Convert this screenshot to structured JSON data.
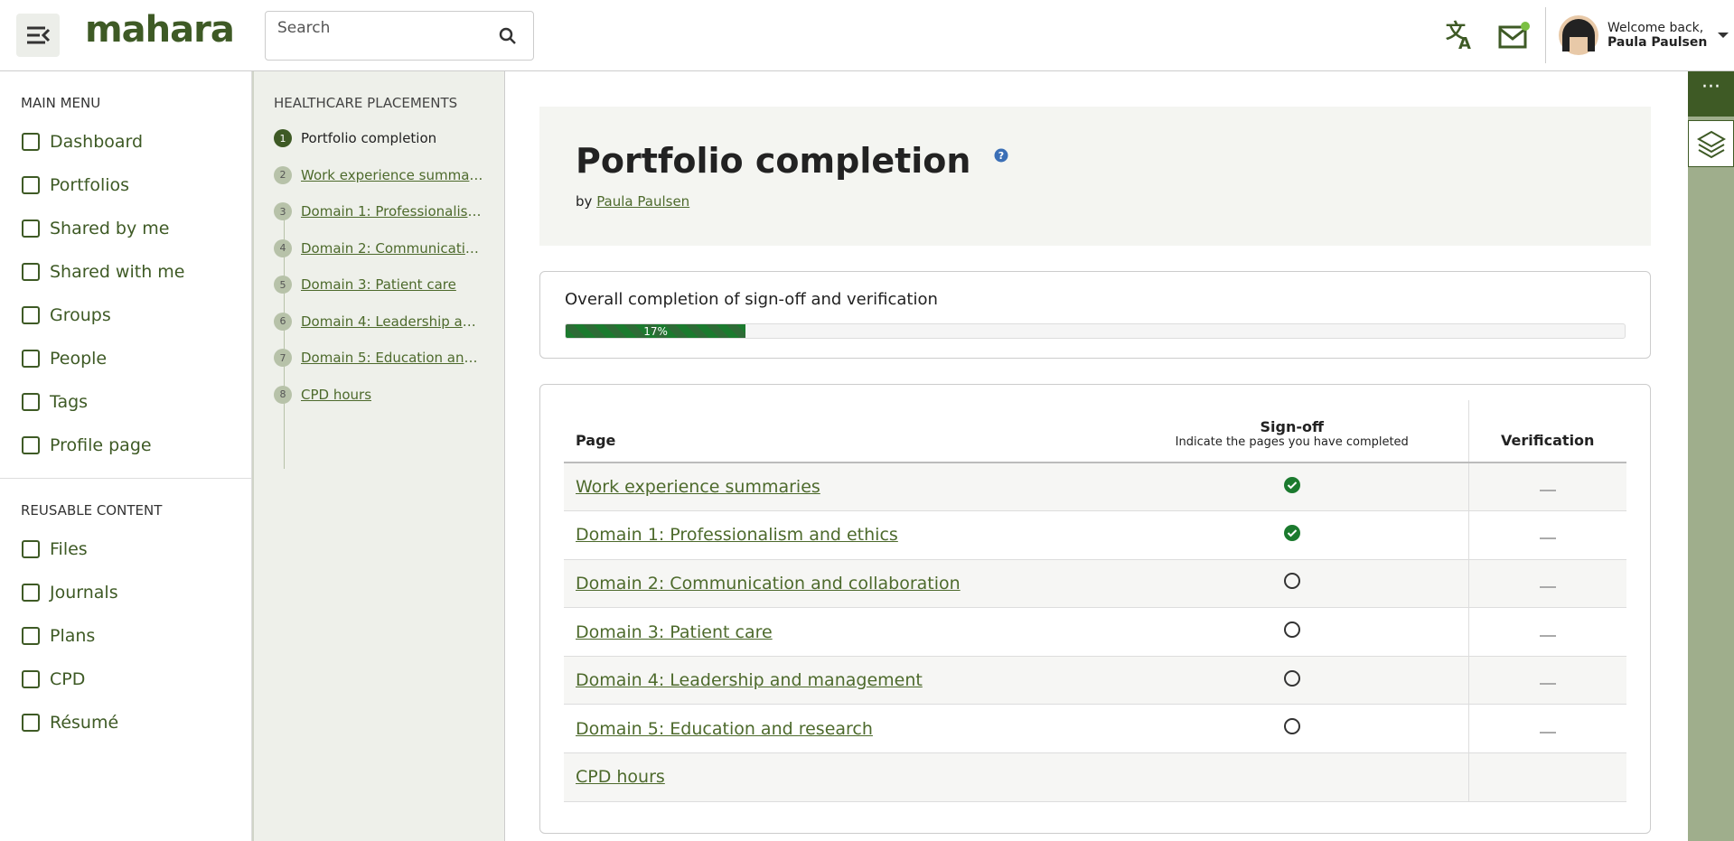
{
  "header": {
    "logo": "mahara",
    "search_placeholder": "Search",
    "welcome": "Welcome back,",
    "user": "Paula Paulsen"
  },
  "main_menu": {
    "heading": "MAIN MENU",
    "items": [
      "Dashboard",
      "Portfolios",
      "Shared by me",
      "Shared with me",
      "Groups",
      "People",
      "Tags",
      "Profile page"
    ]
  },
  "reusable_content": {
    "heading": "REUSABLE CONTENT",
    "items": [
      "Files",
      "Journals",
      "Plans",
      "CPD",
      "Résumé"
    ]
  },
  "collection_nav": {
    "title": "HEALTHCARE PLACEMENTS",
    "items": [
      {
        "number": 1,
        "label": "Portfolio completion"
      },
      {
        "number": 2,
        "label": "Work experience summaries"
      },
      {
        "number": 3,
        "label": "Domain 1: Professionalism and ethics"
      },
      {
        "number": 4,
        "label": "Domain 2: Communication and collaboration"
      },
      {
        "number": 5,
        "label": "Domain 3: Patient care"
      },
      {
        "number": 6,
        "label": "Domain 4: Leadership and management"
      },
      {
        "number": 7,
        "label": "Domain 5: Education and research"
      },
      {
        "number": 8,
        "label": "CPD hours"
      }
    ]
  },
  "page": {
    "title": "Portfolio completion",
    "by": "by",
    "author": "Paula Paulsen"
  },
  "progress": {
    "label": "Overall completion of sign-off and verification",
    "value": {
      "value": 17,
      "label": "17%"
    }
  },
  "table": {
    "headers": {
      "page": "Page",
      "signoff": "Sign-off",
      "signoff_hint": "Indicate the pages you have completed",
      "verification": "Verification"
    },
    "rows": [
      {
        "page": "Work experience summaries",
        "signed_off": true,
        "verification": true
      },
      {
        "page": "Domain 1: Professionalism and ethics",
        "signed_off": true,
        "verification": true
      },
      {
        "page": "Domain 2: Communication and collaboration",
        "signed_off": false,
        "verification": true
      },
      {
        "page": "Domain 3: Patient care",
        "signed_off": false,
        "verification": true
      },
      {
        "page": "Domain 4: Leadership and management",
        "signed_off": false,
        "verification": true
      },
      {
        "page": "Domain 5: Education and research",
        "signed_off": false,
        "verification": true
      },
      {
        "page": "CPD hours",
        "signed_off": null,
        "verification": false
      }
    ]
  }
}
